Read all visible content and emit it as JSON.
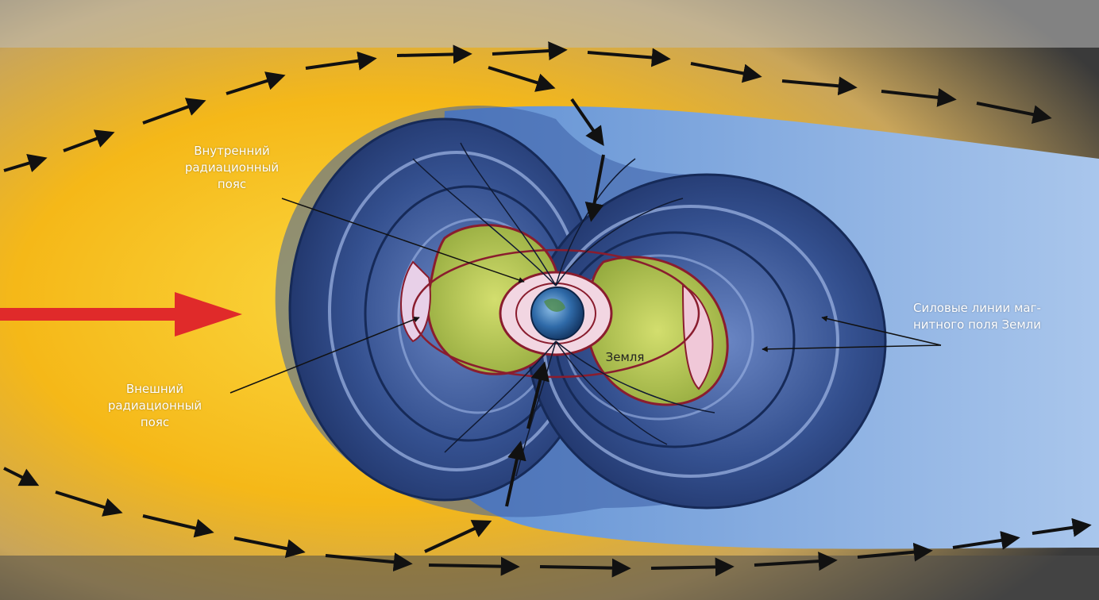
{
  "labels": {
    "inner_belt": [
      "Внутренний",
      "радиационный",
      "пояс"
    ],
    "outer_belt": [
      "Внешний",
      "радиационный",
      "пояс"
    ],
    "field_lines": [
      "Силовые линии маг-",
      "нитного поля Земли"
    ],
    "earth": "Земля"
  },
  "colors": {
    "solar_wind": "#f6c21a",
    "magnetosphere": "#2d4e8e",
    "magnetotail": "#8fb3e0",
    "belt_fill": "#b9c95a",
    "belt_outline": "#8a1d2e",
    "sun_arrow": "#e02a2a",
    "flow_arrows": "#111111"
  },
  "icons": {
    "sun_direction": "red-arrow-icon",
    "flow": "dashed-arrow-icon",
    "earth": "earth-globe-icon"
  }
}
